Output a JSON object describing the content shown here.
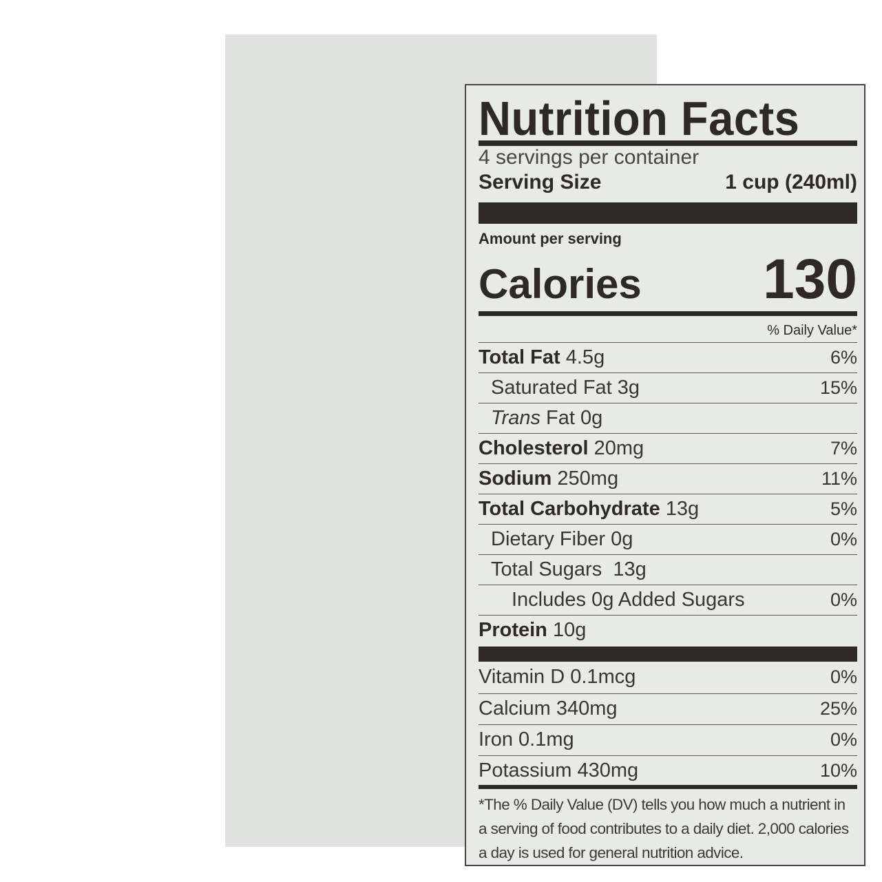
{
  "title": "Nutrition Facts",
  "servings_per_container": "4 servings per container",
  "serving_size": {
    "label": "Serving Size",
    "value": "1 cup (240ml)"
  },
  "amount_per_serving": "Amount per serving",
  "calories": {
    "label": "Calories",
    "value": "130"
  },
  "daily_value_header": "% Daily Value*",
  "nutrients": [
    {
      "name": "Total Fat",
      "amount": "4.5g",
      "dv": "6%"
    },
    {
      "name": "Saturated Fat",
      "amount": "3g",
      "dv": "15%"
    },
    {
      "name": "Trans",
      "amount": "Fat 0g",
      "dv": ""
    },
    {
      "name": "Cholesterol",
      "amount": "20mg",
      "dv": "7%"
    },
    {
      "name": "Sodium",
      "amount": "250mg",
      "dv": "11%"
    },
    {
      "name": "Total Carbohydrate",
      "amount": "13g",
      "dv": "5%"
    },
    {
      "name": "Dietary Fiber",
      "amount": "0g",
      "dv": "0%"
    },
    {
      "name": "Total Sugars",
      "amount": "13g",
      "dv": ""
    },
    {
      "name": "Includes 0g Added Sugars",
      "amount": "",
      "dv": "0%"
    },
    {
      "name": "Protein",
      "amount": "10g",
      "dv": ""
    }
  ],
  "vitamins": [
    {
      "name": "Vitamin D",
      "amount": "0.1mcg",
      "dv": "0%"
    },
    {
      "name": "Calcium",
      "amount": "340mg",
      "dv": "25%"
    },
    {
      "name": "Iron",
      "amount": "0.1mg",
      "dv": "0%"
    },
    {
      "name": "Potassium",
      "amount": "430mg",
      "dv": "10%"
    }
  ],
  "footnote": "*The % Daily Value (DV) tells you how much a nutrient in a serving of food contributes to a daily diet. 2,000 calories a day is used for general nutrition advice.",
  "colors": {
    "ink": "#2e2927",
    "label_bg": "#e7eae6",
    "panel_bg": "#dfe2de"
  }
}
